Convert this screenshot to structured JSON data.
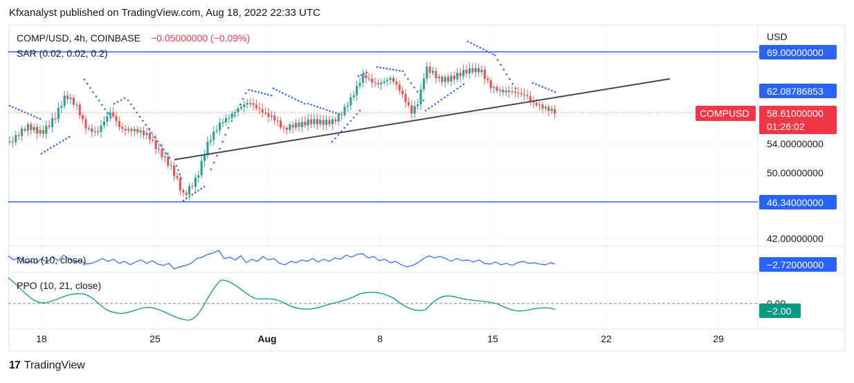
{
  "header": {
    "published": "Kfxanalyst published on TradingView.com, Aug 18, 2022 22:33 UTC"
  },
  "legend": {
    "symbol": "COMP/USD, 4h, COINBASE",
    "change": "−0.05000000 (−0.09%)",
    "sar": "SAR (0.02, 0.02, 0.2)",
    "mom": "Mom (10, close)",
    "ppo": "PPO (10, 21, close)"
  },
  "axis": {
    "currency": "USD",
    "ticks": [
      "54.00000000",
      "50.00000000",
      "42.00000000"
    ],
    "top_level": "69.00000000",
    "trend_level": "62.08786853",
    "bottom_level": "46.34000000",
    "ppo_zero": "0.00"
  },
  "price_label": {
    "ticker": "COMPUSD",
    "price": "58.61000000",
    "countdown": "01:26:02"
  },
  "indicators": {
    "mom_value": "−2.72000000",
    "ppo_value": "−2.00"
  },
  "time_axis": [
    "18",
    "25",
    "Aug",
    "8",
    "15",
    "22",
    "29"
  ],
  "footer": {
    "brand": "TradingView"
  },
  "colors": {
    "up": "#26a69a",
    "down": "#ef5350",
    "level": "#2962ff",
    "sar": "#2962ff",
    "trend": "#434651",
    "price": "#f23645",
    "ppo": "#089981"
  },
  "chart_data": {
    "type": "candlestick",
    "title": "COMP/USD, 4h, COINBASE",
    "y_range": [
      40,
      72
    ],
    "horizontal_levels": [
      69.0,
      46.34
    ],
    "trendline": {
      "from": [
        "Jul 26",
        51.9
      ],
      "to": [
        "Aug 25",
        65.2
      ]
    },
    "last_price": 58.61,
    "momentum_last": -2.72,
    "ppo_last": -2.0
  }
}
